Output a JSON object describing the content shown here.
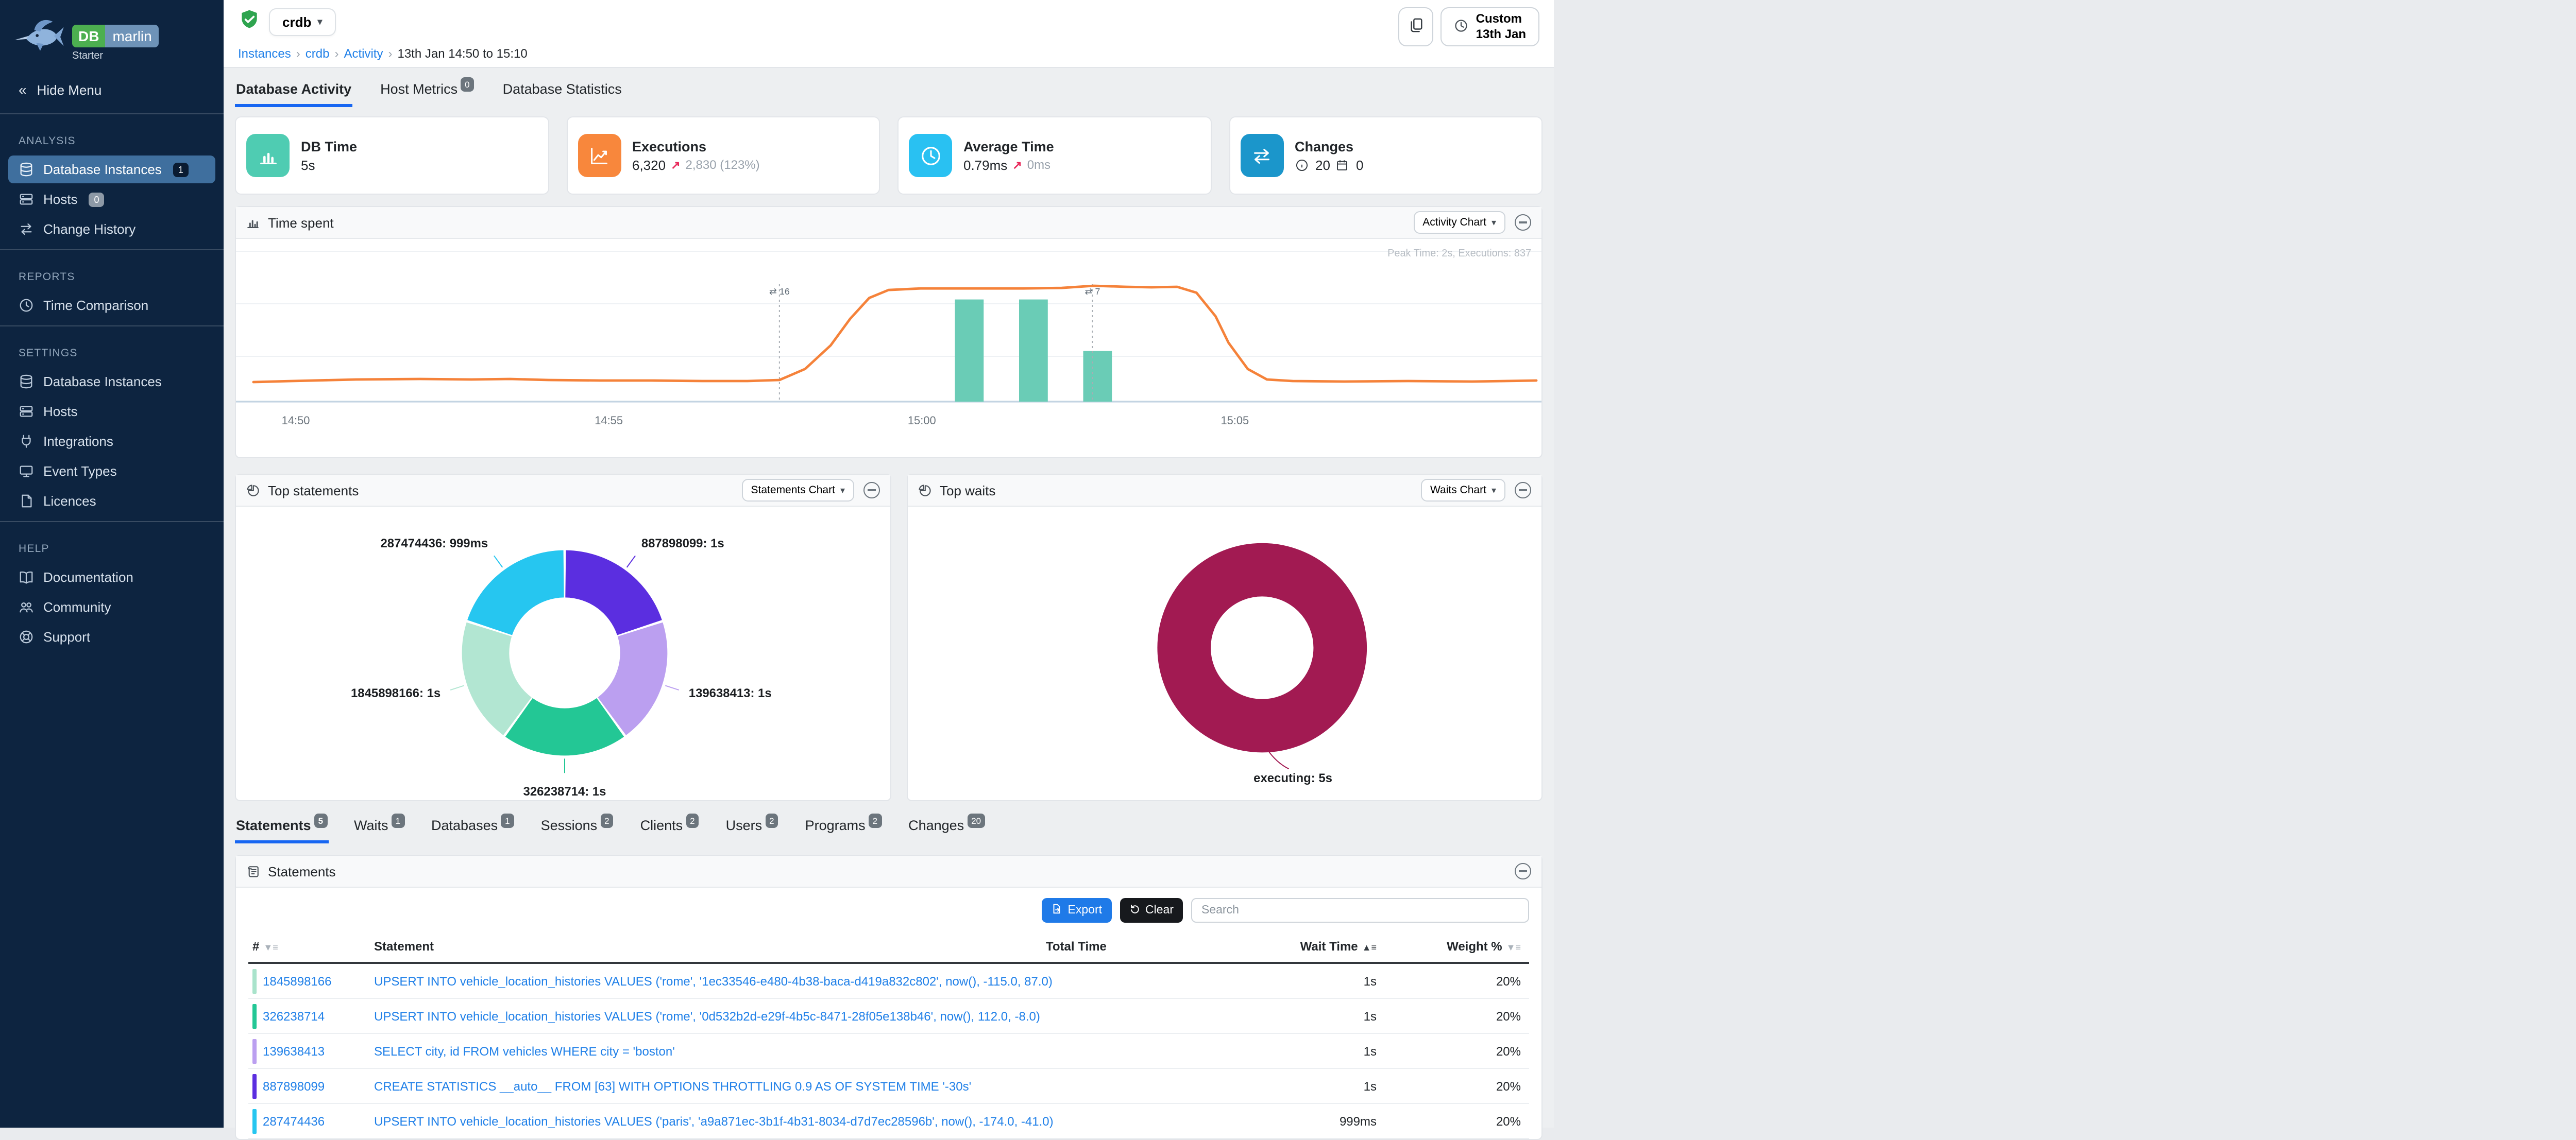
{
  "brand": {
    "db": "DB",
    "name": "marlin",
    "edition": "Starter"
  },
  "sidebar": {
    "hide_menu": "Hide Menu",
    "sections": [
      {
        "title": "ANALYSIS",
        "items": [
          {
            "label": "Database Instances",
            "icon": "database",
            "badge": "1",
            "badge_style": "navy",
            "active": true
          },
          {
            "label": "Hosts",
            "icon": "hosts",
            "badge": "0",
            "badge_style": "gray"
          },
          {
            "label": "Change History",
            "icon": "swap"
          }
        ]
      },
      {
        "title": "REPORTS",
        "items": [
          {
            "label": "Time Comparison",
            "icon": "clock"
          }
        ]
      },
      {
        "title": "SETTINGS",
        "items": [
          {
            "label": "Database Instances",
            "icon": "database"
          },
          {
            "label": "Hosts",
            "icon": "hosts"
          },
          {
            "label": "Integrations",
            "icon": "plug"
          },
          {
            "label": "Event Types",
            "icon": "events"
          },
          {
            "label": "Licences",
            "icon": "licence"
          }
        ]
      },
      {
        "title": "HELP",
        "items": [
          {
            "label": "Documentation",
            "icon": "book"
          },
          {
            "label": "Community",
            "icon": "people"
          },
          {
            "label": "Support",
            "icon": "support"
          }
        ]
      }
    ]
  },
  "header": {
    "instance": "crdb",
    "breadcrumb": [
      "Instances",
      "crdb",
      "Activity",
      "13th Jan 14:50 to 15:10"
    ],
    "time_button": {
      "line1": "Custom",
      "line2": "13th Jan"
    },
    "tabs": [
      {
        "label": "Database Activity",
        "active": true
      },
      {
        "label": "Host Metrics",
        "badge": "0"
      },
      {
        "label": "Database Statistics"
      }
    ]
  },
  "metrics": [
    {
      "title": "DB Time",
      "value": "5s",
      "icon": "barchart",
      "color": "#4fccb2"
    },
    {
      "title": "Executions",
      "value": "6,320",
      "trend_arrow": "↗",
      "trend": "2,830 (123%)",
      "icon": "linechart",
      "color": "#f8873c"
    },
    {
      "title": "Average Time",
      "value": "0.79ms",
      "trend_arrow": "↗",
      "trend": "0ms",
      "icon": "clock",
      "color": "#29c1f2"
    },
    {
      "title": "Changes",
      "info_count": "20",
      "calendar_count": "0",
      "icon": "swap",
      "color": "#1b96cb"
    }
  ],
  "panels": {
    "time_spent": {
      "title": "Time spent",
      "button": "Activity Chart",
      "peak": "Peak Time: 2s, Executions: 837"
    },
    "top_statements": {
      "title": "Top statements",
      "button": "Statements Chart"
    },
    "top_waits": {
      "title": "Top waits",
      "button": "Waits Chart"
    }
  },
  "chart_data": [
    {
      "type": "line",
      "name": "time-spent",
      "title": "Time spent",
      "x_range": [
        "14:50",
        "15:10"
      ],
      "x_ticks": [
        {
          "f": 0.022,
          "label": "14:50"
        },
        {
          "f": 0.266,
          "label": "14:55"
        },
        {
          "f": 0.51,
          "label": "15:00"
        },
        {
          "f": 0.754,
          "label": "15:05"
        }
      ],
      "y_unit": "s",
      "y_max": 2.2,
      "annotation": "Peak Time: 2s, Executions: 837",
      "line_color": "#f5823a",
      "line_points": [
        [
          0,
          0.25
        ],
        [
          0.03,
          0.27
        ],
        [
          0.08,
          0.3
        ],
        [
          0.13,
          0.31
        ],
        [
          0.17,
          0.3
        ],
        [
          0.2,
          0.31
        ],
        [
          0.23,
          0.29
        ],
        [
          0.27,
          0.28
        ],
        [
          0.31,
          0.28
        ],
        [
          0.35,
          0.27
        ],
        [
          0.385,
          0.27
        ],
        [
          0.41,
          0.29
        ],
        [
          0.43,
          0.5
        ],
        [
          0.45,
          0.95
        ],
        [
          0.465,
          1.45
        ],
        [
          0.48,
          1.85
        ],
        [
          0.495,
          2.0
        ],
        [
          0.52,
          2.03
        ],
        [
          0.56,
          2.03
        ],
        [
          0.6,
          2.03
        ],
        [
          0.63,
          2.04
        ],
        [
          0.655,
          2.08
        ],
        [
          0.68,
          2.06
        ],
        [
          0.7,
          2.05
        ],
        [
          0.72,
          2.06
        ],
        [
          0.735,
          1.95
        ],
        [
          0.75,
          1.5
        ],
        [
          0.76,
          1.0
        ],
        [
          0.775,
          0.5
        ],
        [
          0.79,
          0.3
        ],
        [
          0.81,
          0.27
        ],
        [
          0.85,
          0.26
        ],
        [
          0.9,
          0.27
        ],
        [
          0.95,
          0.26
        ],
        [
          1,
          0.28
        ]
      ],
      "bar_color": "#6accb6",
      "bars": [
        {
          "x": 0.558,
          "v": 1.82
        },
        {
          "x": 0.608,
          "v": 1.82
        },
        {
          "x": 0.658,
          "v": 0.84
        }
      ],
      "change_markers": [
        {
          "x": 0.41,
          "count": "16"
        },
        {
          "x": 0.654,
          "count": "7"
        }
      ]
    },
    {
      "type": "pie",
      "name": "top-statements",
      "title": "Top statements",
      "slices": [
        {
          "label": "887898099",
          "value": "1s",
          "pct": 20,
          "color": "#5b2ee0"
        },
        {
          "label": "139638413",
          "value": "1s",
          "pct": 20,
          "color": "#bb9ff0"
        },
        {
          "label": "326238714",
          "value": "1s",
          "pct": 20,
          "color": "#23c795"
        },
        {
          "label": "1845898166",
          "value": "1s",
          "pct": 20,
          "color": "#b2e6d2"
        },
        {
          "label": "287474436",
          "value": "999ms",
          "pct": 20,
          "color": "#26c6f0"
        }
      ]
    },
    {
      "type": "pie",
      "name": "top-waits",
      "title": "Top waits",
      "slices": [
        {
          "label": "executing",
          "value": "5s",
          "pct": 100,
          "color": "#a21a52"
        }
      ]
    }
  ],
  "detail_tabs": [
    {
      "label": "Statements",
      "badge": "5",
      "active": true
    },
    {
      "label": "Waits",
      "badge": "1"
    },
    {
      "label": "Databases",
      "badge": "1"
    },
    {
      "label": "Sessions",
      "badge": "2"
    },
    {
      "label": "Clients",
      "badge": "2"
    },
    {
      "label": "Users",
      "badge": "2"
    },
    {
      "label": "Programs",
      "badge": "2"
    },
    {
      "label": "Changes",
      "badge": "20"
    }
  ],
  "statements_panel": {
    "title": "Statements",
    "export_label": "Export",
    "clear_label": "Clear",
    "search_placeholder": "Search",
    "columns": {
      "num": "#",
      "statement": "Statement",
      "total_time": "Total Time",
      "wait_time": "Wait Time",
      "weight": "Weight %"
    },
    "total_time_color": "#a11a52",
    "rows": [
      {
        "id": "1845898166",
        "chip_color": "#a9e3cb",
        "sql": "UPSERT INTO vehicle_location_histories VALUES ('rome', '1ec33546-e480-4b38-baca-d419a832c802', now(), -115.0, 87.0)",
        "wait_time": "1s",
        "weight": "20%"
      },
      {
        "id": "326238714",
        "chip_color": "#23c795",
        "sql": "UPSERT INTO vehicle_location_histories VALUES ('rome', '0d532b2d-e29f-4b5c-8471-28f05e138b46', now(), 112.0, -8.0)",
        "wait_time": "1s",
        "weight": "20%"
      },
      {
        "id": "139638413",
        "chip_color": "#bb9ff0",
        "sql": "SELECT city, id FROM vehicles WHERE city = 'boston'",
        "wait_time": "1s",
        "weight": "20%"
      },
      {
        "id": "887898099",
        "chip_color": "#5b2ee0",
        "sql": "CREATE STATISTICS __auto__ FROM [63] WITH OPTIONS THROTTLING 0.9 AS OF SYSTEM TIME '-30s'",
        "wait_time": "1s",
        "weight": "20%"
      },
      {
        "id": "287474436",
        "chip_color": "#26c6f0",
        "sql": "UPSERT INTO vehicle_location_histories VALUES ('paris', 'a9a871ec-3b1f-4b31-8034-d7d7ec28596b', now(), -174.0, -41.0)",
        "wait_time": "999ms",
        "weight": "20%"
      }
    ]
  }
}
